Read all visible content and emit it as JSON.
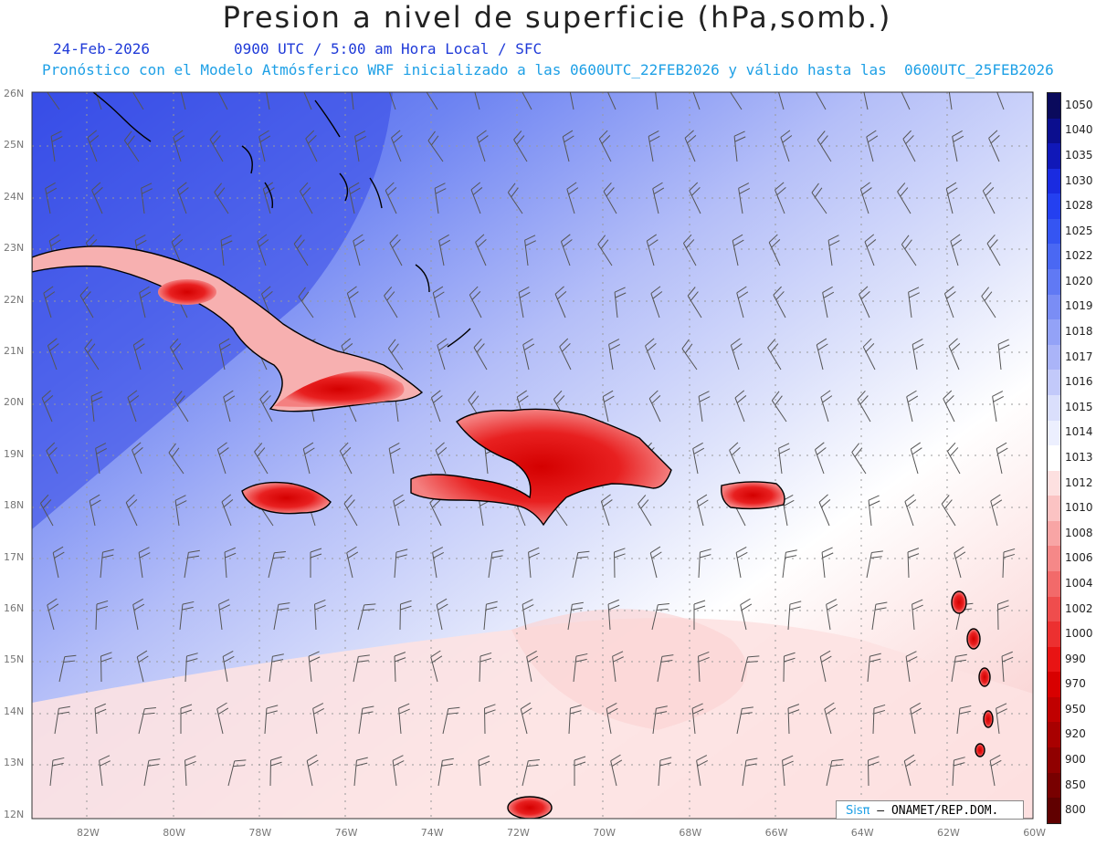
{
  "header": {
    "title": "Presion a nivel de superficie (hPa,somb.)",
    "date": "24-Feb-2026",
    "valid_time": "0900 UTC / 5:00 am Hora Local / SFC",
    "model_info": "Pronóstico con el Modelo Atmósferico WRF inicializado a las 0600UTC_22FEB2026 y válido hasta las  0600UTC_25FEB2026"
  },
  "axes": {
    "lat_labels": [
      "26N",
      "25N",
      "24N",
      "23N",
      "22N",
      "21N",
      "20N",
      "19N",
      "18N",
      "17N",
      "16N",
      "15N",
      "14N",
      "13N",
      "12N"
    ],
    "lon_labels": [
      "82W",
      "80W",
      "78W",
      "76W",
      "74W",
      "72W",
      "70W",
      "68W",
      "66W",
      "64W",
      "62W",
      "60W"
    ]
  },
  "colorbar": {
    "labels": [
      "1050",
      "1040",
      "1035",
      "1030",
      "1028",
      "1025",
      "1022",
      "1020",
      "1019",
      "1018",
      "1017",
      "1016",
      "1015",
      "1014",
      "1013",
      "1012",
      "1010",
      "1008",
      "1006",
      "1004",
      "1002",
      "1000",
      "990",
      "970",
      "950",
      "920",
      "900",
      "850",
      "800"
    ],
    "colors": [
      "#0a0a5c",
      "#0b0e8e",
      "#1018b8",
      "#1a2be0",
      "#2440f0",
      "#3555f2",
      "#4a68f3",
      "#6079f4",
      "#7a8df5",
      "#93a2f7",
      "#aab4f8",
      "#c2c9fa",
      "#dadffc",
      "#eceffe",
      "#ffffff",
      "#fde0e0",
      "#fbc3c3",
      "#f8a5a5",
      "#f58888",
      "#f26a6a",
      "#ef4d4d",
      "#ec3030",
      "#e81414",
      "#d80000",
      "#c00000",
      "#a80000",
      "#900000",
      "#780000",
      "#600000"
    ]
  },
  "credit": {
    "logo": "Sisπ",
    "text": " – ONAMET/REP.DOM."
  }
}
